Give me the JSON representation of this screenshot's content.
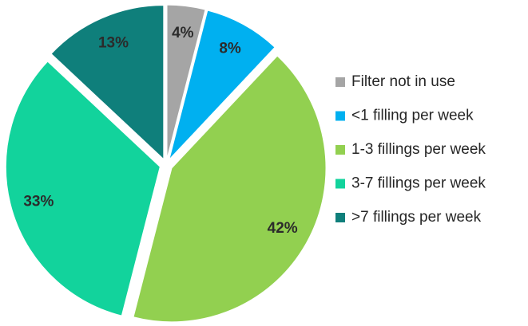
{
  "chart_data": {
    "type": "pie",
    "categories": [
      "Filter not in use",
      "<1 filling per week",
      "1-3 fillings per week",
      "3-7 fillings per week",
      ">7 fillings per week"
    ],
    "values": [
      4,
      8,
      42,
      33,
      13
    ],
    "value_labels": [
      "4%",
      "8%",
      "42%",
      "33%",
      "13%"
    ],
    "colors": [
      "#a5a5a5",
      "#00b0f0",
      "#92d050",
      "#12d39c",
      "#0f7f7b"
    ],
    "legend": "right"
  }
}
